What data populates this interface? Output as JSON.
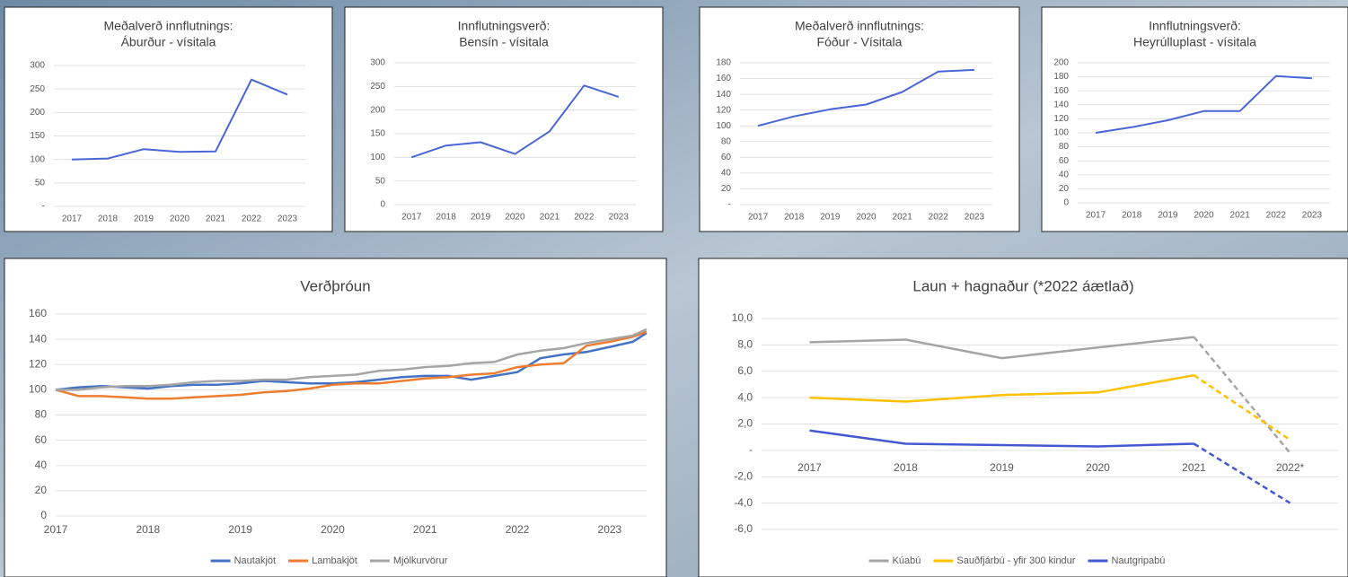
{
  "chart_data": [
    {
      "type": "line",
      "title": [
        "Meðalverð innflutnings:",
        "Áburður - vísitala"
      ],
      "categories": [
        "2017",
        "2018",
        "2019",
        "2020",
        "2021",
        "2022",
        "2023"
      ],
      "series": [
        {
          "color": "#4a66d6",
          "values": [
            100,
            102,
            122,
            116,
            117,
            270,
            238
          ]
        }
      ],
      "ylim": [
        0,
        300
      ],
      "yticks": [
        {
          "value": 0,
          "label": "-"
        },
        50,
        100,
        150,
        200,
        250,
        300
      ],
      "grid": true
    },
    {
      "type": "line",
      "title": [
        "Innflutningsverð:",
        "Bensín - vísitala"
      ],
      "categories": [
        "2017",
        "2018",
        "2019",
        "2020",
        "2021",
        "2022",
        "2023"
      ],
      "series": [
        {
          "color": "#4a66d6",
          "values": [
            100,
            125,
            132,
            107,
            155,
            252,
            228
          ]
        }
      ],
      "ylim": [
        0,
        300
      ],
      "yticks": [
        0,
        50,
        100,
        150,
        200,
        250,
        300
      ],
      "grid": true
    },
    {
      "type": "line",
      "title": [
        "Meðalverð innflutnings:",
        "Fóður - Vísitala"
      ],
      "categories": [
        "2017",
        "2018",
        "2019",
        "2020",
        "2021",
        "2022",
        "2023"
      ],
      "series": [
        {
          "color": "#4a66d6",
          "values": [
            100,
            112,
            121,
            127,
            143,
            169,
            171
          ]
        }
      ],
      "ylim": [
        0,
        180
      ],
      "yticks": [
        {
          "value": 0,
          "label": "-"
        },
        20,
        40,
        60,
        80,
        100,
        120,
        140,
        160,
        180
      ],
      "grid": true
    },
    {
      "type": "line",
      "title": [
        "Innflutningsverð:",
        "Heyrúlluplast - vísitala"
      ],
      "categories": [
        "2017",
        "2018",
        "2019",
        "2020",
        "2021",
        "2022",
        "2023"
      ],
      "series": [
        {
          "color": "#4a66d6",
          "values": [
            100,
            108,
            118,
            131,
            131,
            181,
            178
          ]
        }
      ],
      "ylim": [
        0,
        200
      ],
      "yticks": [
        0,
        20,
        40,
        60,
        80,
        100,
        120,
        140,
        160,
        180,
        200
      ],
      "grid": true
    },
    {
      "type": "line",
      "title": [
        "Verðþróun"
      ],
      "x": [
        2017,
        2017.25,
        2017.5,
        2017.75,
        2018,
        2018.25,
        2018.5,
        2018.75,
        2019,
        2019.25,
        2019.5,
        2019.75,
        2020,
        2020.25,
        2020.5,
        2020.75,
        2021,
        2021.25,
        2021.5,
        2021.75,
        2022,
        2022.25,
        2022.5,
        2022.75,
        2023,
        2023.25,
        2023.4
      ],
      "series": [
        {
          "name": "Nautakjöt",
          "color": "#4472c4",
          "values": [
            100,
            102,
            103,
            102,
            101,
            103,
            104,
            104,
            105,
            107,
            106,
            105,
            105,
            106,
            108,
            110,
            111,
            111,
            108,
            111,
            114,
            125,
            128,
            130,
            134,
            138,
            145
          ]
        },
        {
          "name": "Lambakjöt",
          "color": "#ed7d31",
          "values": [
            100,
            95,
            95,
            94,
            93,
            93,
            94,
            95,
            96,
            98,
            99,
            101,
            104,
            105,
            105,
            107,
            109,
            110,
            112,
            113,
            118,
            120,
            121,
            135,
            138,
            142,
            146
          ]
        },
        {
          "name": "Mjólkurvörur",
          "color": "#a5a5a5",
          "values": [
            100,
            100,
            102,
            103,
            103,
            104,
            106,
            107,
            107,
            108,
            108,
            110,
            111,
            112,
            115,
            116,
            118,
            119,
            121,
            122,
            128,
            131,
            133,
            137,
            140,
            143,
            148
          ]
        }
      ],
      "xlim": [
        2017,
        2023.4
      ],
      "xticks": [
        2017,
        2018,
        2019,
        2020,
        2021,
        2022,
        2023
      ],
      "ylim": [
        0,
        160
      ],
      "yticks": [
        0,
        20,
        40,
        60,
        80,
        100,
        120,
        140,
        160
      ],
      "grid": true,
      "legend": "bottom"
    },
    {
      "type": "line",
      "title": [
        "Laun + hagnaður (*2022 áætlað)"
      ],
      "categories": [
        "2017",
        "2018",
        "2019",
        "2020",
        "2021",
        "2022*"
      ],
      "series": [
        {
          "name": "Kúabú",
          "color": "#a5a5a5",
          "values": [
            8.2,
            8.4,
            7.0,
            7.8,
            8.6,
            -0.2
          ]
        },
        {
          "name": "Sauðfjárbú - yfir 300 kindur",
          "color": "#ffc000",
          "values": [
            4.0,
            3.7,
            4.2,
            4.4,
            5.7,
            0.8
          ]
        },
        {
          "name": "Nautgripabú",
          "color": "#4459d0",
          "values": [
            1.5,
            0.5,
            0.4,
            0.3,
            0.5,
            -4.0
          ]
        }
      ],
      "dashed_last_segment": true,
      "ylim": [
        -6,
        10
      ],
      "yticks": [
        {
          "value": -6,
          "label": "-6,0"
        },
        {
          "value": -4,
          "label": "-4,0"
        },
        {
          "value": -2,
          "label": "-2,0"
        },
        {
          "value": 0,
          "label": "-"
        },
        {
          "value": 2,
          "label": "2,0"
        },
        {
          "value": 4,
          "label": "4,0"
        },
        {
          "value": 6,
          "label": "6,0"
        },
        {
          "value": 8,
          "label": "8,0"
        },
        {
          "value": 10,
          "label": "10,0"
        }
      ],
      "grid": true,
      "legend": "bottom"
    }
  ]
}
